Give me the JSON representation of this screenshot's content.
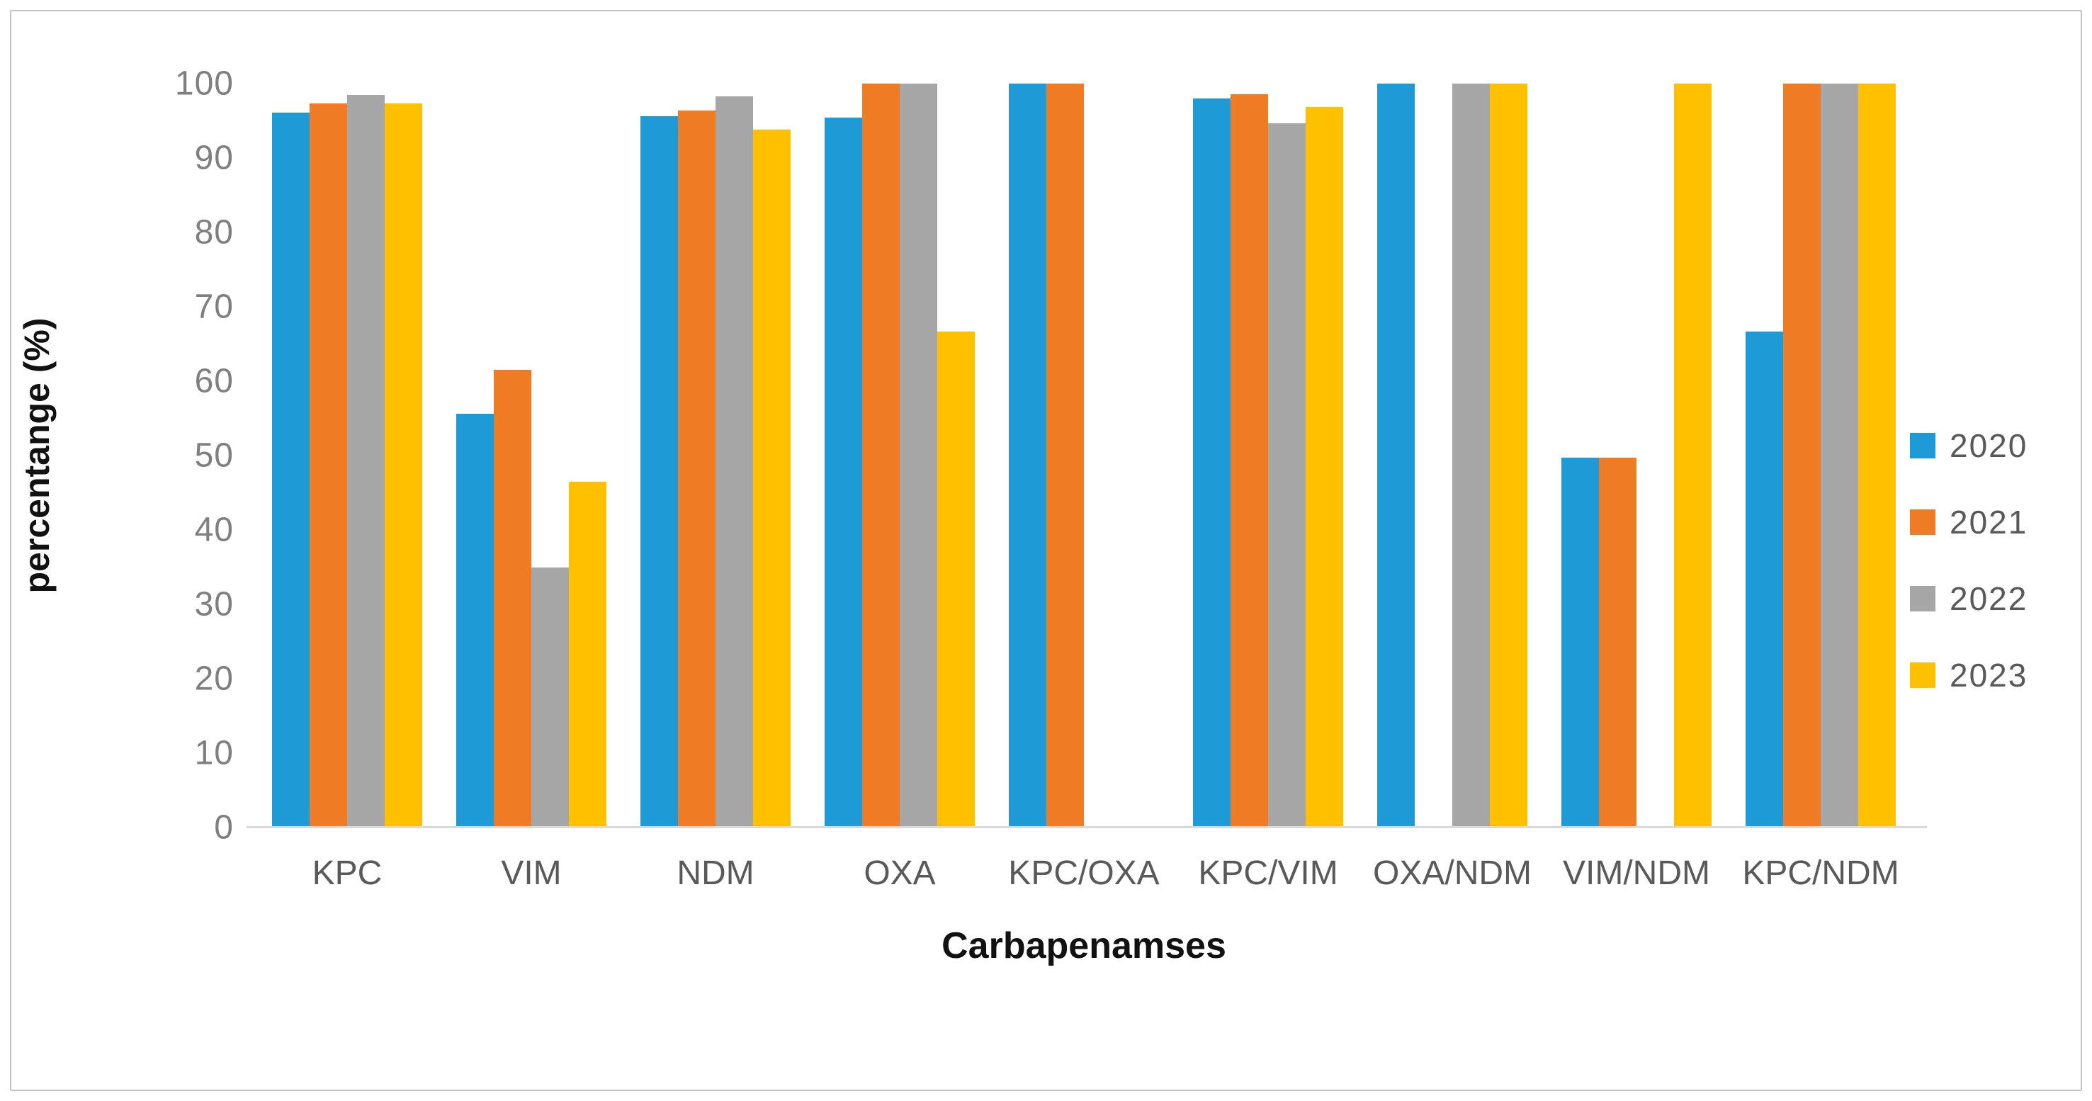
{
  "figure": {
    "background_color": "#ffffff",
    "border_color": "#c2c2c2"
  },
  "axes": {
    "y_title": "percentange (%)",
    "x_title": "Carbapenamses",
    "tick_color": "#7f7f7f",
    "category_label_color": "#595959",
    "baseline_color": "#d9d9d9"
  },
  "legend": {
    "position": "right",
    "items": [
      {
        "label": "2020",
        "color": "#1e9bd7"
      },
      {
        "label": "2021",
        "color": "#ef7b25"
      },
      {
        "label": "2022",
        "color": "#a6a6a6"
      },
      {
        "label": "2023",
        "color": "#ffc000"
      }
    ]
  },
  "chart_data": {
    "type": "bar",
    "title": "",
    "xlabel": "Carbapenamses",
    "ylabel": "percentange (%)",
    "ylim": [
      0,
      100
    ],
    "y_ticks": [
      0,
      10,
      20,
      30,
      40,
      50,
      60,
      70,
      80,
      90,
      100
    ],
    "grid": false,
    "legend_position": "right",
    "categories": [
      "KPC",
      "VIM",
      "NDM",
      "OXA",
      "KPC/OXA",
      "KPC/VIM",
      "OXA/NDM",
      "VIM/NDM",
      "KPC/NDM"
    ],
    "series": [
      {
        "name": "2020",
        "color": "#1e9bd7",
        "values": [
          96.1,
          55.6,
          95.6,
          95.4,
          100,
          98.0,
          100,
          49.7,
          66.7
        ]
      },
      {
        "name": "2021",
        "color": "#ef7b25",
        "values": [
          97.3,
          61.5,
          96.4,
          100,
          100,
          98.6,
          0,
          49.7,
          100
        ]
      },
      {
        "name": "2022",
        "color": "#a6a6a6",
        "values": [
          98.5,
          35.0,
          98.3,
          100,
          0,
          94.7,
          100,
          0,
          100
        ]
      },
      {
        "name": "2023",
        "color": "#ffc000",
        "values": [
          97.3,
          46.5,
          93.8,
          66.7,
          0,
          96.9,
          100,
          100,
          100
        ]
      }
    ]
  }
}
